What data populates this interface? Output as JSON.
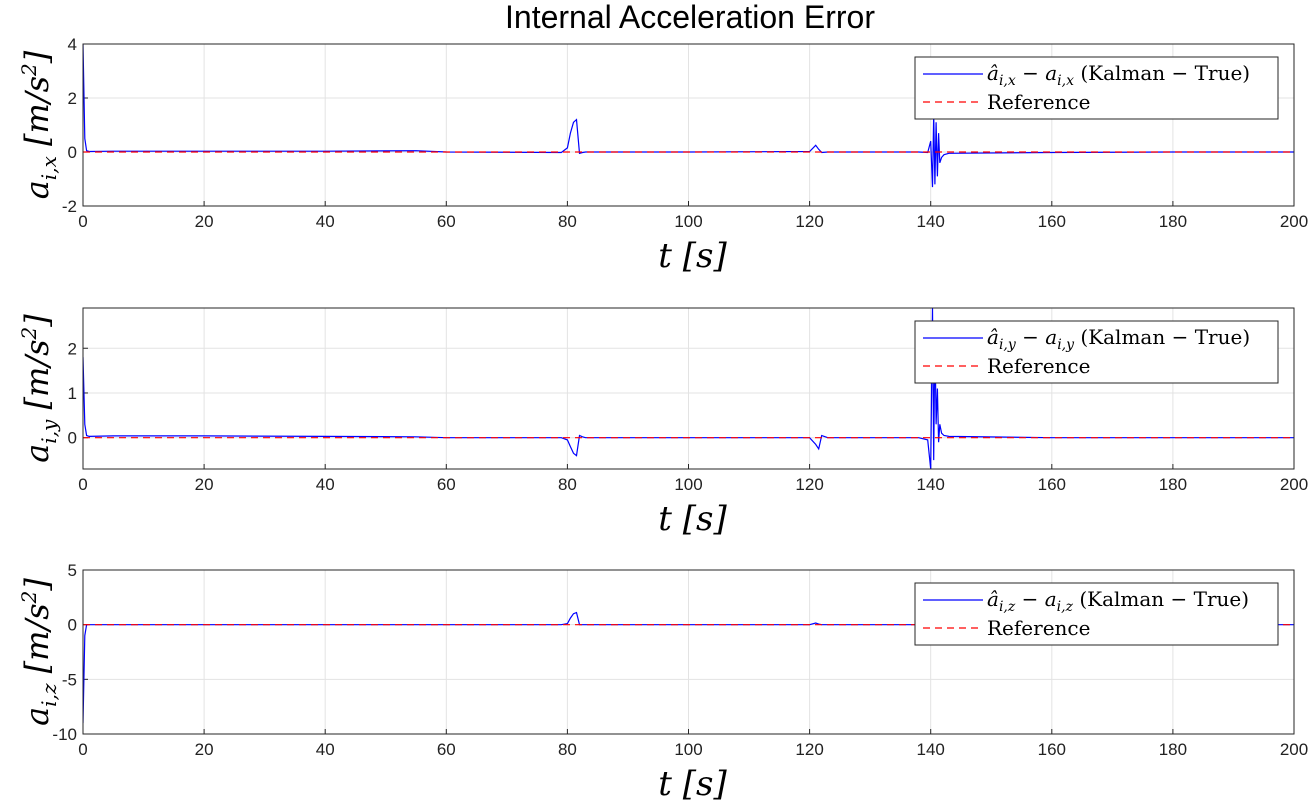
{
  "figure": {
    "title": "Internal Acceleration Error"
  },
  "colors": {
    "kalman": "#0000ff",
    "reference": "#ff0000",
    "grid": "#e3e3e3",
    "axis": "#262626"
  },
  "chart_data": [
    {
      "type": "line",
      "xlabel": "t [s]",
      "ylabel": "a_{i,x} [m/s^2]",
      "ylabel_var": "a",
      "ylabel_sub": "i,x",
      "ylabel_unit": "[m/s",
      "ylabel_exp": "2",
      "ylabel_close": "]",
      "xlim": [
        0,
        200
      ],
      "ylim": [
        -2,
        4
      ],
      "xticks": [
        0,
        20,
        40,
        60,
        80,
        100,
        120,
        140,
        160,
        180,
        200
      ],
      "yticks": [
        -2,
        0,
        2,
        4
      ],
      "grid": true,
      "legend_position": "top-right",
      "legend": {
        "kalman_label": "â_{i,x} − a_{i,x} (Kalman − True)",
        "kalman_hat": "â",
        "kalman_sub": "i,x",
        "kalman_mid": " − a",
        "kalman_sub2": "i,x",
        "kalman_text": "(Kalman − True)",
        "reference_label": "Reference"
      },
      "series": [
        {
          "name": "â_{i,x} − a_{i,x} (Kalman − True)",
          "style": "solid",
          "x": [
            0,
            0.3,
            0.6,
            1,
            5,
            20,
            40,
            55,
            60,
            79,
            80,
            80.5,
            81,
            81.5,
            82,
            82.5,
            83,
            100,
            120,
            121,
            121.5,
            122,
            123,
            138,
            139.5,
            140,
            140.3,
            140.5,
            140.7,
            140.9,
            141.1,
            141.3,
            141.5,
            141.8,
            142.2,
            143,
            160,
            180,
            200
          ],
          "y": [
            4,
            0.5,
            0.05,
            0.02,
            0.03,
            0.03,
            0.03,
            0.05,
            0,
            -0.02,
            0.15,
            0.7,
            1.1,
            1.2,
            -0.05,
            -0.02,
            0,
            0,
            0.02,
            0.25,
            0.1,
            -0.02,
            0,
            0,
            -0.02,
            0.4,
            -1.3,
            1.4,
            -1.2,
            1.1,
            -0.9,
            0.7,
            -0.4,
            -0.2,
            -0.1,
            -0.05,
            -0.02,
            0,
            0
          ]
        },
        {
          "name": "Reference",
          "style": "dashed",
          "x": [
            0,
            200
          ],
          "y": [
            0,
            0
          ]
        }
      ]
    },
    {
      "type": "line",
      "xlabel": "t [s]",
      "ylabel": "a_{i,y} [m/s^2]",
      "ylabel_var": "a",
      "ylabel_sub": "i,y",
      "ylabel_unit": "[m/s",
      "ylabel_exp": "2",
      "ylabel_close": "]",
      "xlim": [
        0,
        200
      ],
      "ylim": [
        -0.7,
        2.9
      ],
      "xticks": [
        0,
        20,
        40,
        60,
        80,
        100,
        120,
        140,
        160,
        180,
        200
      ],
      "yticks": [
        0,
        1,
        2
      ],
      "grid": true,
      "legend_position": "top-right",
      "legend": {
        "kalman_label": "â_{i,y} − a_{i,y} (Kalman − True)",
        "kalman_hat": "â",
        "kalman_sub": "i,y",
        "kalman_mid": " − a",
        "kalman_sub2": "i,y",
        "kalman_text": "(Kalman − True)",
        "reference_label": "Reference"
      },
      "series": [
        {
          "name": "â_{i,y} − a_{i,y} (Kalman − True)",
          "style": "solid",
          "x": [
            0,
            0.3,
            0.6,
            1,
            5,
            20,
            40,
            55,
            60,
            79,
            80,
            80.5,
            81,
            81.5,
            82,
            82.5,
            83,
            100,
            120,
            121,
            121.5,
            122,
            123,
            138,
            139.5,
            140,
            140.3,
            140.5,
            140.7,
            140.9,
            141.1,
            141.3,
            141.5,
            141.8,
            142.2,
            143,
            160,
            180,
            200
          ],
          "y": [
            1.8,
            0.3,
            0.05,
            0.03,
            0.04,
            0.04,
            0.03,
            0.02,
            0,
            0,
            -0.05,
            -0.2,
            -0.35,
            -0.4,
            0.05,
            0.02,
            0,
            0,
            0,
            -0.15,
            -0.25,
            0.05,
            0,
            0,
            -0.05,
            -0.7,
            2.9,
            -0.5,
            2.4,
            0.3,
            1.1,
            -0.1,
            0.3,
            0.1,
            0.05,
            0.03,
            0,
            0,
            0
          ]
        },
        {
          "name": "Reference",
          "style": "dashed",
          "x": [
            0,
            200
          ],
          "y": [
            0,
            0
          ]
        }
      ]
    },
    {
      "type": "line",
      "xlabel": "t [s]",
      "ylabel": "a_{i,z} [m/s^2]",
      "ylabel_var": "a",
      "ylabel_sub": "i,z",
      "ylabel_unit": "[m/s",
      "ylabel_exp": "2",
      "ylabel_close": "]",
      "xlim": [
        0,
        200
      ],
      "ylim": [
        -10,
        5
      ],
      "xticks": [
        0,
        20,
        40,
        60,
        80,
        100,
        120,
        140,
        160,
        180,
        200
      ],
      "yticks": [
        -10,
        -5,
        0,
        5
      ],
      "grid": true,
      "legend_position": "top-right",
      "legend": {
        "kalman_label": "â_{i,z} − a_{i,z} (Kalman − True)",
        "kalman_hat": "â",
        "kalman_sub": "i,z",
        "kalman_mid": " − a",
        "kalman_sub2": "i,z",
        "kalman_text": "(Kalman − True)",
        "reference_label": "Reference"
      },
      "series": [
        {
          "name": "â_{i,z} − a_{i,z} (Kalman − True)",
          "style": "solid",
          "x": [
            0,
            0.3,
            0.6,
            1,
            5,
            20,
            40,
            60,
            79,
            80,
            80.5,
            81,
            81.5,
            82,
            82.5,
            100,
            120,
            121,
            121.5,
            122,
            123,
            140,
            160,
            180,
            200
          ],
          "y": [
            -9,
            -1,
            0,
            0,
            0,
            0,
            0,
            0,
            0,
            0.1,
            0.6,
            1.0,
            1.1,
            0,
            0,
            0,
            0,
            0.15,
            0.05,
            0,
            0,
            0,
            0,
            0,
            0
          ]
        },
        {
          "name": "Reference",
          "style": "dashed",
          "x": [
            0,
            200
          ],
          "y": [
            0,
            0
          ]
        }
      ]
    }
  ]
}
